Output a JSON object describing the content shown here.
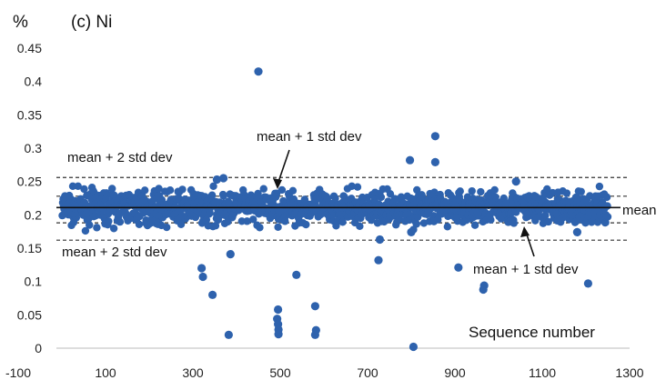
{
  "chart_data": {
    "type": "scatter",
    "title": "(c) Ni",
    "ylabel": "%",
    "xlabel": "Sequence number",
    "xlim": [
      -100,
      1300
    ],
    "ylim": [
      0,
      0.45
    ],
    "xticks": [
      -100,
      100,
      300,
      500,
      700,
      900,
      1100,
      1300
    ],
    "yticks": [
      0,
      0.05,
      0.1,
      0.15,
      0.2,
      0.25,
      0.3,
      0.35,
      0.4,
      0.45
    ],
    "series": [
      {
        "color": "#2e62ad",
        "band": {
          "x_start": 1,
          "x_end": 1250,
          "center": 0.211,
          "spread": 0.012
        },
        "outliers": [
          {
            "x": 450,
            "y": 0.415
          },
          {
            "x": 855,
            "y": 0.318
          },
          {
            "x": 855,
            "y": 0.279
          },
          {
            "x": 797,
            "y": 0.282
          },
          {
            "x": 320,
            "y": 0.12
          },
          {
            "x": 323,
            "y": 0.107
          },
          {
            "x": 345,
            "y": 0.08
          },
          {
            "x": 386,
            "y": 0.141
          },
          {
            "x": 382,
            "y": 0.02
          },
          {
            "x": 537,
            "y": 0.11
          },
          {
            "x": 495,
            "y": 0.058
          },
          {
            "x": 493,
            "y": 0.044
          },
          {
            "x": 495,
            "y": 0.036
          },
          {
            "x": 496,
            "y": 0.028
          },
          {
            "x": 496,
            "y": 0.021
          },
          {
            "x": 580,
            "y": 0.063
          },
          {
            "x": 582,
            "y": 0.027
          },
          {
            "x": 580,
            "y": 0.02
          },
          {
            "x": 725,
            "y": 0.132
          },
          {
            "x": 728,
            "y": 0.163
          },
          {
            "x": 805,
            "y": 0.002
          },
          {
            "x": 908,
            "y": 0.121
          },
          {
            "x": 967,
            "y": 0.094
          },
          {
            "x": 965,
            "y": 0.088
          },
          {
            "x": 1205,
            "y": 0.097
          },
          {
            "x": 355,
            "y": 0.253
          },
          {
            "x": 370,
            "y": 0.255
          },
          {
            "x": 1040,
            "y": 0.25
          },
          {
            "x": 800,
            "y": 0.174
          },
          {
            "x": 1180,
            "y": 0.174
          }
        ]
      }
    ],
    "lines": {
      "mean": 0.211,
      "plus1": 0.228,
      "minus1": 0.188,
      "plus2": 0.256,
      "minus2": 0.162
    },
    "annotations": {
      "plus2_top": "mean + 2 std dev",
      "plus1_top": "mean + 1 std dev",
      "minus2_bottom": "mean + 2 std dev",
      "minus1_bottom": "mean + 1 std dev",
      "mean": "mean"
    },
    "grid": false,
    "legend": "none"
  }
}
